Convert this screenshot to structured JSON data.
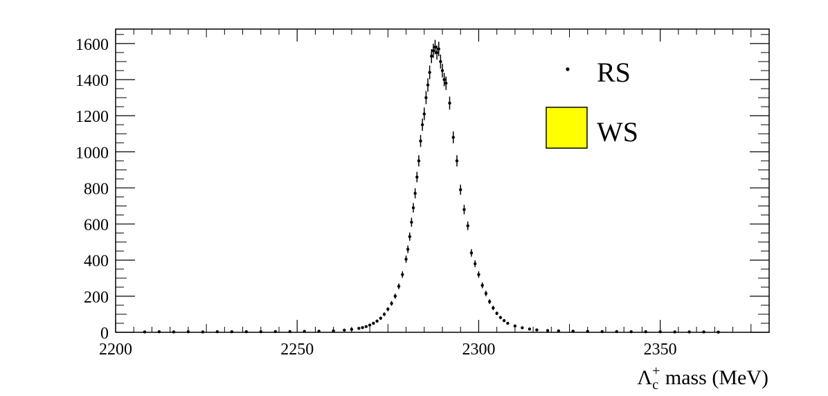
{
  "chart_data": {
    "type": "scatter",
    "title": "",
    "xlabel": {
      "symbol": "Λ",
      "sub": "c",
      "sup": "+",
      "text": " mass (MeV)"
    },
    "ylabel": "",
    "xlim": [
      2200,
      2380
    ],
    "ylim": [
      0,
      1680
    ],
    "x_ticks": [
      2200,
      2250,
      2300,
      2350
    ],
    "y_ticks": [
      0,
      200,
      400,
      600,
      800,
      1000,
      1200,
      1400,
      1600
    ],
    "grid": false,
    "legend": {
      "placement": "top-right",
      "entries": [
        {
          "label": "RS",
          "style": "marker"
        },
        {
          "label": "WS",
          "style": "fill",
          "color": "#ffff00"
        }
      ]
    },
    "series": [
      {
        "name": "RS",
        "marker": "point",
        "color": "#000000",
        "points": [
          {
            "x": 2208,
            "y": 2,
            "err": 2
          },
          {
            "x": 2212,
            "y": 3,
            "err": 2
          },
          {
            "x": 2216,
            "y": 2,
            "err": 2
          },
          {
            "x": 2220,
            "y": 3,
            "err": 2
          },
          {
            "x": 2224,
            "y": 2,
            "err": 2
          },
          {
            "x": 2228,
            "y": 3,
            "err": 2
          },
          {
            "x": 2232,
            "y": 3,
            "err": 2
          },
          {
            "x": 2236,
            "y": 3,
            "err": 2
          },
          {
            "x": 2240,
            "y": 3,
            "err": 2
          },
          {
            "x": 2244,
            "y": 4,
            "err": 2
          },
          {
            "x": 2248,
            "y": 4,
            "err": 2
          },
          {
            "x": 2252,
            "y": 5,
            "err": 2
          },
          {
            "x": 2256,
            "y": 6,
            "err": 3
          },
          {
            "x": 2260,
            "y": 8,
            "err": 3
          },
          {
            "x": 2263,
            "y": 12,
            "err": 3
          },
          {
            "x": 2265,
            "y": 16,
            "err": 4
          },
          {
            "x": 2267,
            "y": 22,
            "err": 5
          },
          {
            "x": 2268,
            "y": 26,
            "err": 5
          },
          {
            "x": 2269,
            "y": 32,
            "err": 6
          },
          {
            "x": 2270,
            "y": 40,
            "err": 6
          },
          {
            "x": 2271,
            "y": 50,
            "err": 7
          },
          {
            "x": 2272,
            "y": 62,
            "err": 8
          },
          {
            "x": 2273,
            "y": 78,
            "err": 9
          },
          {
            "x": 2274,
            "y": 100,
            "err": 10
          },
          {
            "x": 2275,
            "y": 128,
            "err": 11
          },
          {
            "x": 2276,
            "y": 160,
            "err": 13
          },
          {
            "x": 2277,
            "y": 200,
            "err": 14
          },
          {
            "x": 2278,
            "y": 255,
            "err": 16
          },
          {
            "x": 2279,
            "y": 320,
            "err": 18
          },
          {
            "x": 2280,
            "y": 405,
            "err": 20
          },
          {
            "x": 2280.5,
            "y": 460,
            "err": 21
          },
          {
            "x": 2281,
            "y": 530,
            "err": 23
          },
          {
            "x": 2281.5,
            "y": 610,
            "err": 25
          },
          {
            "x": 2282,
            "y": 690,
            "err": 26
          },
          {
            "x": 2282.5,
            "y": 770,
            "err": 28
          },
          {
            "x": 2283,
            "y": 860,
            "err": 29
          },
          {
            "x": 2283.5,
            "y": 950,
            "err": 31
          },
          {
            "x": 2284,
            "y": 1060,
            "err": 33
          },
          {
            "x": 2284.5,
            "y": 1150,
            "err": 34
          },
          {
            "x": 2285,
            "y": 1210,
            "err": 35
          },
          {
            "x": 2285.5,
            "y": 1300,
            "err": 36
          },
          {
            "x": 2286,
            "y": 1370,
            "err": 37
          },
          {
            "x": 2286.5,
            "y": 1440,
            "err": 38
          },
          {
            "x": 2287,
            "y": 1530,
            "err": 39
          },
          {
            "x": 2287.5,
            "y": 1560,
            "err": 39
          },
          {
            "x": 2288,
            "y": 1580,
            "err": 40
          },
          {
            "x": 2288.5,
            "y": 1550,
            "err": 39
          },
          {
            "x": 2289,
            "y": 1570,
            "err": 40
          },
          {
            "x": 2289.5,
            "y": 1500,
            "err": 39
          },
          {
            "x": 2290,
            "y": 1450,
            "err": 38
          },
          {
            "x": 2290.5,
            "y": 1400,
            "err": 37
          },
          {
            "x": 2291,
            "y": 1380,
            "err": 37
          },
          {
            "x": 2292,
            "y": 1270,
            "err": 36
          },
          {
            "x": 2293,
            "y": 1080,
            "err": 33
          },
          {
            "x": 2294,
            "y": 950,
            "err": 31
          },
          {
            "x": 2295,
            "y": 790,
            "err": 28
          },
          {
            "x": 2296,
            "y": 680,
            "err": 26
          },
          {
            "x": 2297,
            "y": 590,
            "err": 24
          },
          {
            "x": 2298,
            "y": 440,
            "err": 21
          },
          {
            "x": 2299,
            "y": 380,
            "err": 19
          },
          {
            "x": 2300,
            "y": 320,
            "err": 18
          },
          {
            "x": 2301,
            "y": 260,
            "err": 16
          },
          {
            "x": 2302,
            "y": 215,
            "err": 15
          },
          {
            "x": 2303,
            "y": 170,
            "err": 13
          },
          {
            "x": 2304,
            "y": 135,
            "err": 12
          },
          {
            "x": 2305,
            "y": 105,
            "err": 10
          },
          {
            "x": 2306,
            "y": 82,
            "err": 9
          },
          {
            "x": 2307,
            "y": 65,
            "err": 8
          },
          {
            "x": 2308,
            "y": 50,
            "err": 7
          },
          {
            "x": 2310,
            "y": 35,
            "err": 6
          },
          {
            "x": 2312,
            "y": 25,
            "err": 5
          },
          {
            "x": 2314,
            "y": 18,
            "err": 4
          },
          {
            "x": 2316,
            "y": 13,
            "err": 4
          },
          {
            "x": 2319,
            "y": 10,
            "err": 3
          },
          {
            "x": 2322,
            "y": 8,
            "err": 3
          },
          {
            "x": 2326,
            "y": 6,
            "err": 3
          },
          {
            "x": 2330,
            "y": 5,
            "err": 2
          },
          {
            "x": 2334,
            "y": 4,
            "err": 2
          },
          {
            "x": 2338,
            "y": 4,
            "err": 2
          },
          {
            "x": 2342,
            "y": 3,
            "err": 2
          },
          {
            "x": 2346,
            "y": 3,
            "err": 2
          },
          {
            "x": 2350,
            "y": 3,
            "err": 2
          },
          {
            "x": 2354,
            "y": 2,
            "err": 2
          },
          {
            "x": 2358,
            "y": 2,
            "err": 2
          },
          {
            "x": 2362,
            "y": 2,
            "err": 2
          },
          {
            "x": 2366,
            "y": 1,
            "err": 1
          }
        ]
      },
      {
        "name": "WS",
        "style": "fill",
        "color": "#ffff00",
        "points": []
      }
    ]
  }
}
